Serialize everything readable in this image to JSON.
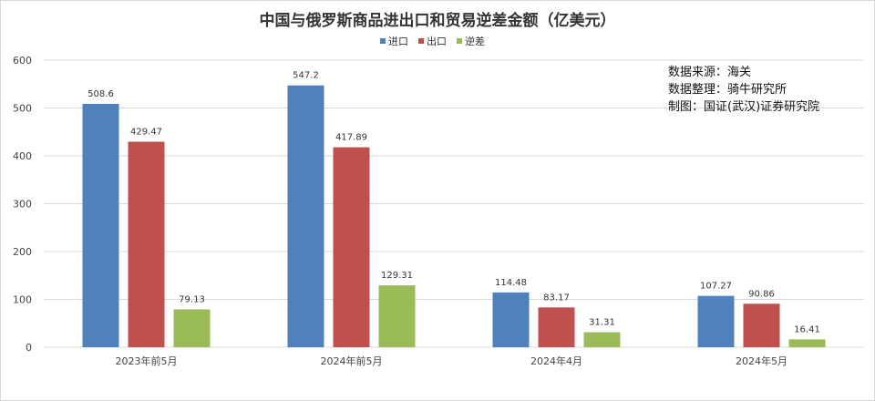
{
  "chart_data": {
    "type": "bar",
    "title": "中国与俄罗斯商品进出口和贸易逆差金额（亿美元）",
    "categories": [
      "2023年前5月",
      "2024年前5月",
      "2024年4月",
      "2024年5月"
    ],
    "series": [
      {
        "name": "进口",
        "color": "#4f81bd",
        "values": [
          508.6,
          547.2,
          114.48,
          107.27
        ],
        "labels": [
          "508.6",
          "547.2",
          "114.48",
          "107.27"
        ]
      },
      {
        "name": "出口",
        "color": "#c0504d",
        "values": [
          429.47,
          417.89,
          83.17,
          90.86
        ],
        "labels": [
          "429.47",
          "417.89",
          "83.17",
          "90.86"
        ]
      },
      {
        "name": "逆差",
        "color": "#9bbb59",
        "values": [
          79.13,
          129.31,
          31.31,
          16.41
        ],
        "labels": [
          "79.13",
          "129.31",
          "31.31",
          "16.41"
        ]
      }
    ],
    "ylim": [
      0,
      600
    ],
    "yticks": [
      "0",
      "100",
      "200",
      "300",
      "400",
      "500",
      "600"
    ],
    "grid": true,
    "legend_position": "top-center",
    "annotations": [
      "数据来源：海关",
      "数据整理：骑牛研究所",
      "制图：国证(武汉)证券研究院"
    ]
  }
}
